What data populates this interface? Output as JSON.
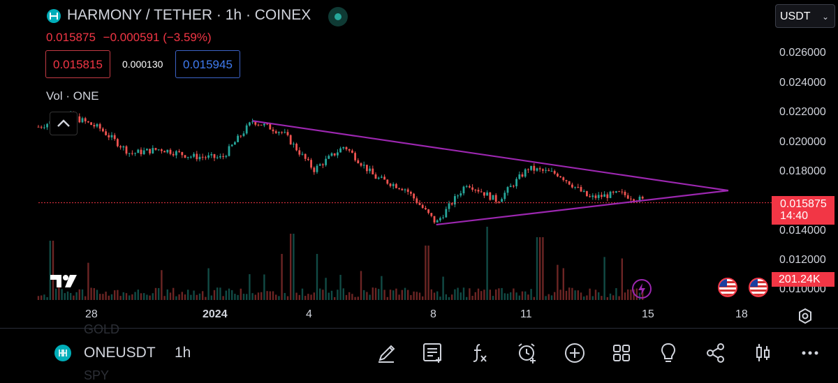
{
  "header": {
    "title": "HARMONY / TETHER · 1h · COINEX",
    "last": "0.015875",
    "change": "−0.000591 (−3.59%)",
    "bid": "0.015815",
    "spread": "0.000130",
    "ask": "0.015945",
    "volume_label": "Vol · ONE"
  },
  "currency_select": {
    "value": "USDT"
  },
  "price_axis": {
    "ticks": [
      "0.026000",
      "0.024000",
      "0.022000",
      "0.020000",
      "0.018000",
      "0.014000",
      "0.012000",
      "0.010000"
    ],
    "current_price": "0.015875",
    "countdown": "14:40",
    "volume_value": "201.24K"
  },
  "time_axis": {
    "ticks": [
      "28",
      "2024",
      "4",
      "8",
      "11",
      "15",
      "18"
    ]
  },
  "colors": {
    "up": "#26a69a",
    "down": "#ef5350",
    "pattern": "#9c27b0",
    "accent": "#f23645"
  },
  "bottom_bar": {
    "symbol": "ONEUSDT",
    "interval": "1h",
    "ghost_above": "GOLD",
    "ghost_below": "SPY",
    "tools": [
      "draw-icon",
      "notes-icon",
      "indicators-icon",
      "alert-icon",
      "add-icon",
      "layouts-icon",
      "ideas-icon",
      "share-icon",
      "chart-type-icon",
      "more-icon"
    ]
  },
  "chart_data": {
    "type": "candlestick",
    "x_ticks": [
      "28",
      "2024",
      "4",
      "8",
      "11",
      "15",
      "18"
    ],
    "y_ticks": [
      "0.026000",
      "0.024000",
      "0.022000",
      "0.020000",
      "0.018000",
      "0.014000",
      "0.012000",
      "0.010000"
    ],
    "ylim": [
      0.0095,
      0.0275
    ],
    "waypoints": [
      {
        "x": "Dec 26",
        "y": 0.021
      },
      {
        "x": "Dec 27",
        "y": 0.0218
      },
      {
        "x": "Dec 28",
        "y": 0.0209
      },
      {
        "x": "Dec 29",
        "y": 0.0192
      },
      {
        "x": "Dec 30",
        "y": 0.0195
      },
      {
        "x": "Dec 31",
        "y": 0.019
      },
      {
        "x": "Jan 1",
        "y": 0.0189
      },
      {
        "x": "Jan 2",
        "y": 0.0214
      },
      {
        "x": "Jan 3",
        "y": 0.0206
      },
      {
        "x": "Jan 4",
        "y": 0.0181
      },
      {
        "x": "Jan 5",
        "y": 0.0197
      },
      {
        "x": "Jan 6",
        "y": 0.0176
      },
      {
        "x": "Jan 7",
        "y": 0.0168
      },
      {
        "x": "Jan 8",
        "y": 0.0145
      },
      {
        "x": "Jan 9",
        "y": 0.0172
      },
      {
        "x": "Jan 10",
        "y": 0.016
      },
      {
        "x": "Jan 11",
        "y": 0.0182
      },
      {
        "x": "Jan 12",
        "y": 0.0178
      },
      {
        "x": "Jan 13",
        "y": 0.0162
      },
      {
        "x": "Jan 14",
        "y": 0.0165
      },
      {
        "x": "Jan 15",
        "y": 0.01588
      }
    ],
    "trendlines": [
      {
        "name": "upper",
        "from": {
          "x": "Jan 2",
          "y": 0.0214
        },
        "to": {
          "x": "Jan 18",
          "y": 0.0167
        }
      },
      {
        "name": "lower",
        "from": {
          "x": "Jan 8",
          "y": 0.0144
        },
        "to": {
          "x": "Jan 18",
          "y": 0.0167
        }
      }
    ],
    "last_price": 0.015875
  }
}
